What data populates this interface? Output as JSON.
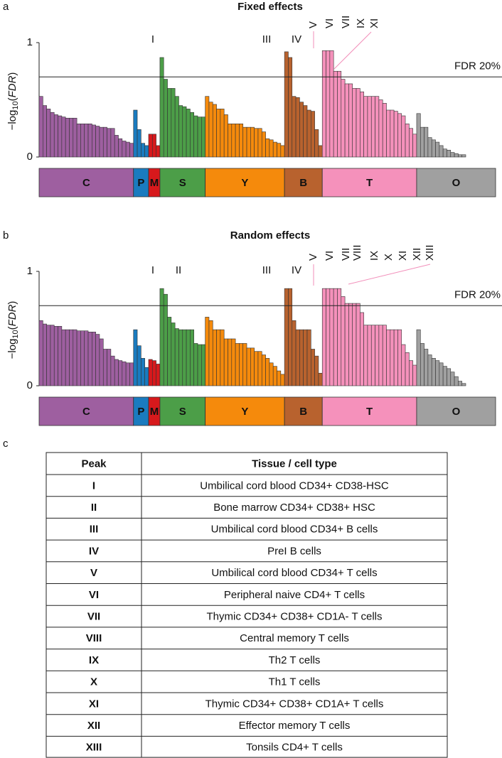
{
  "chart_data": [
    {
      "type": "bar",
      "label": "a",
      "title": "Fixed effects",
      "y_label": [
        "−log",
        "10",
        "(",
        "FDR",
        ")"
      ],
      "ylim": [
        0,
        1
      ],
      "yticks": [
        0,
        1
      ],
      "threshold": {
        "value": 0.7,
        "label": "FDR 20%"
      },
      "annotations": [
        "I",
        "III",
        "IV",
        "V",
        "VI",
        "VII",
        "IX",
        "XI"
      ],
      "series": [
        {
          "name": "C",
          "color": "#9e5fa0",
          "values": [
            0.53,
            0.45,
            0.42,
            0.39,
            0.37,
            0.36,
            0.35,
            0.34,
            0.34,
            0.34,
            0.29,
            0.29,
            0.29,
            0.29,
            0.28,
            0.27,
            0.26,
            0.26,
            0.25,
            0.25,
            0.19,
            0.16,
            0.14,
            0.13,
            0.12
          ]
        },
        {
          "name": "P",
          "color": "#1a7bbf",
          "values": [
            0.41,
            0.24,
            0.12,
            0.1
          ]
        },
        {
          "name": "M",
          "color": "#d7191c",
          "values": [
            0.2,
            0.2,
            0.1
          ]
        },
        {
          "name": "S",
          "color": "#4c9e48",
          "values": [
            0.87,
            0.68,
            0.6,
            0.6,
            0.53,
            0.45,
            0.44,
            0.42,
            0.39,
            0.36,
            0.35,
            0.35
          ]
        },
        {
          "name": "Y",
          "color": "#f58a0c",
          "values": [
            0.53,
            0.48,
            0.46,
            0.42,
            0.42,
            0.37,
            0.29,
            0.29,
            0.29,
            0.29,
            0.26,
            0.26,
            0.26,
            0.25,
            0.25,
            0.22,
            0.16,
            0.15,
            0.13,
            0.12,
            0.1
          ]
        },
        {
          "name": "B",
          "color": "#b8622e",
          "values": [
            0.92,
            0.87,
            0.53,
            0.52,
            0.48,
            0.45,
            0.41,
            0.4,
            0.24,
            0.1
          ]
        },
        {
          "name": "T",
          "color": "#f591bb",
          "values": [
            0.93,
            0.93,
            0.93,
            0.75,
            0.75,
            0.68,
            0.64,
            0.64,
            0.6,
            0.6,
            0.57,
            0.53,
            0.53,
            0.53,
            0.53,
            0.5,
            0.47,
            0.41,
            0.41,
            0.4,
            0.38,
            0.36,
            0.29,
            0.25,
            0.2
          ]
        },
        {
          "name": "O",
          "color": "#a0a0a0",
          "values": [
            0.38,
            0.26,
            0.26,
            0.17,
            0.15,
            0.13,
            0.1,
            0.07,
            0.06,
            0.04,
            0.03,
            0.02,
            0.02
          ]
        }
      ]
    },
    {
      "type": "bar",
      "label": "b",
      "title": "Random effects",
      "y_label": [
        "−log",
        "10",
        "(",
        "FDR",
        ")"
      ],
      "ylim": [
        0,
        1
      ],
      "yticks": [
        0,
        1
      ],
      "threshold": {
        "value": 0.7,
        "label": "FDR 20%"
      },
      "annotations": [
        "I",
        "II",
        "III",
        "IV",
        "V",
        "VI",
        "VII",
        "VIII",
        "IX",
        "X",
        "XI",
        "XII",
        "XIII"
      ],
      "series": [
        {
          "name": "C",
          "color": "#9e5fa0",
          "values": [
            0.57,
            0.54,
            0.53,
            0.53,
            0.52,
            0.52,
            0.49,
            0.49,
            0.49,
            0.49,
            0.48,
            0.48,
            0.48,
            0.47,
            0.47,
            0.45,
            0.41,
            0.32,
            0.32,
            0.26,
            0.23,
            0.22,
            0.21,
            0.2,
            0.2
          ]
        },
        {
          "name": "P",
          "color": "#1a7bbf",
          "values": [
            0.49,
            0.35,
            0.24,
            0.16
          ]
        },
        {
          "name": "M",
          "color": "#d7191c",
          "values": [
            0.23,
            0.22,
            0.19
          ]
        },
        {
          "name": "S",
          "color": "#4c9e48",
          "values": [
            0.85,
            0.8,
            0.6,
            0.55,
            0.5,
            0.49,
            0.49,
            0.49,
            0.49,
            0.37,
            0.36,
            0.36
          ]
        },
        {
          "name": "Y",
          "color": "#f58a0c",
          "values": [
            0.6,
            0.57,
            0.49,
            0.49,
            0.49,
            0.41,
            0.41,
            0.41,
            0.37,
            0.37,
            0.37,
            0.33,
            0.33,
            0.3,
            0.3,
            0.27,
            0.24,
            0.2,
            0.17,
            0.13,
            0.1
          ]
        },
        {
          "name": "B",
          "color": "#b8622e",
          "values": [
            0.85,
            0.85,
            0.57,
            0.49,
            0.49,
            0.49,
            0.49,
            0.32,
            0.26,
            0.11
          ]
        },
        {
          "name": "T",
          "color": "#f591bb",
          "values": [
            0.85,
            0.85,
            0.85,
            0.85,
            0.85,
            0.78,
            0.72,
            0.72,
            0.72,
            0.72,
            0.64,
            0.53,
            0.53,
            0.53,
            0.53,
            0.53,
            0.53,
            0.49,
            0.49,
            0.49,
            0.49,
            0.36,
            0.29,
            0.22,
            0.18
          ]
        },
        {
          "name": "O",
          "color": "#a0a0a0",
          "values": [
            0.49,
            0.37,
            0.32,
            0.27,
            0.24,
            0.22,
            0.2,
            0.17,
            0.15,
            0.12,
            0.08,
            0.04,
            0.02
          ]
        }
      ]
    }
  ],
  "table": {
    "label": "c",
    "header": [
      "Peak",
      "Tissue / cell type"
    ],
    "row_colors": [
      "#4c9e48",
      "#4c9e48",
      "#b8622e",
      "#b8622e",
      "#f28fba",
      "#f28fba",
      "#f28fba",
      "#f28fba",
      "#f28fba",
      "#f28fba",
      "#f28fba",
      "#f28fba",
      "#f28fba"
    ],
    "rows": [
      [
        "I",
        "Umbilical cord blood CD34+ CD38-HSC"
      ],
      [
        "II",
        "Bone marrow CD34+ CD38+ HSC"
      ],
      [
        "III",
        "Umbilical cord blood CD34+ B cells"
      ],
      [
        "IV",
        "PreI B cells"
      ],
      [
        "V",
        "Umbilical cord blood CD34+ T cells"
      ],
      [
        "VI",
        "Peripheral naive CD4+ T cells"
      ],
      [
        "VII",
        "Thymic CD34+ CD38+ CD1A- T cells"
      ],
      [
        "VIII",
        "Central memory T cells"
      ],
      [
        "IX",
        "Th2 T cells"
      ],
      [
        "X",
        "Th1 T cells"
      ],
      [
        "XI",
        "Thymic CD34+ CD38+ CD1A+ T cells"
      ],
      [
        "XII",
        "Effector memory T cells"
      ],
      [
        "XIII",
        "Tonsils CD4+ T cells"
      ]
    ]
  }
}
